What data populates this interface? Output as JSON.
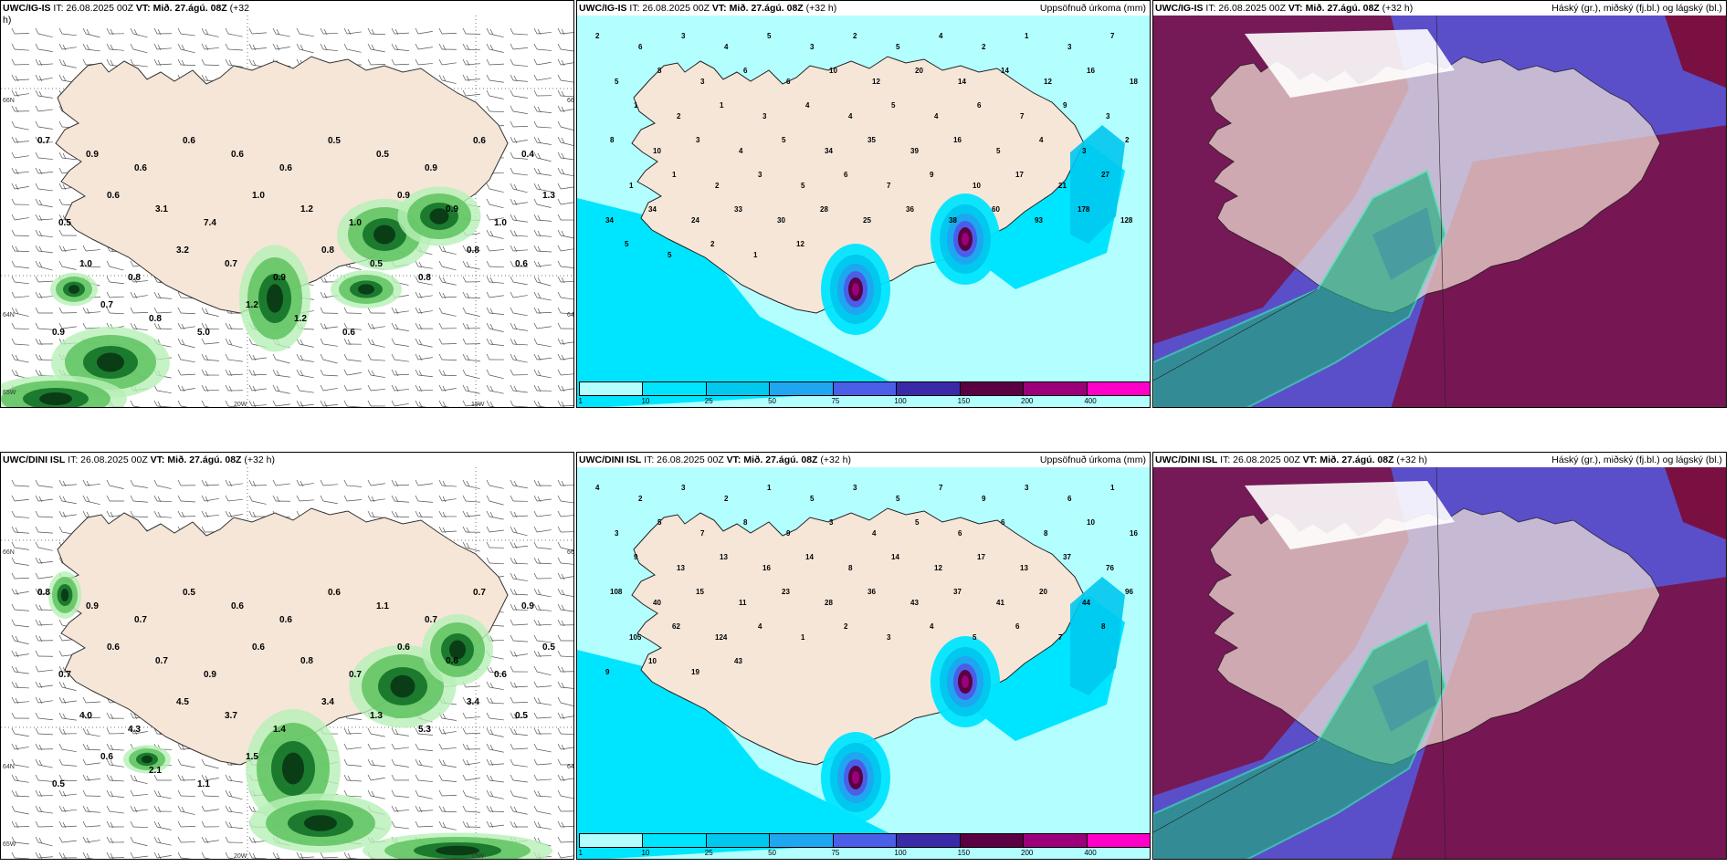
{
  "colors": {
    "land": "#f5e6d8",
    "sea": "#b3f5f5",
    "precip": [
      "#b3ffff",
      "#00e5ff",
      "#00c8ee",
      "#1ea6f0",
      "#4a5ee8",
      "#3a2aa8",
      "#5b0043",
      "#9b007a",
      "#ff00c8",
      "#f7b3f7"
    ],
    "cloud_high": "#1fae7a",
    "cloud_mid": "#5a4fc9",
    "cloud_low": "#7a1042",
    "wind_green": [
      "#e8fbe8",
      "#b6f0b6",
      "#5ec25e",
      "#1b7a2e",
      "#0a3d16"
    ]
  },
  "panels": [
    {
      "id": "p1",
      "model": "UWC/IG-IS",
      "it": "IT: 26.08.2025 00Z",
      "vt_label": "VT:",
      "vt": "Mið. 27.ágú. 08Z",
      "offset": "(+32",
      "offset2": "h)",
      "title_right": "",
      "type": "wind",
      "labels": [
        "0.7",
        "0.9",
        "0.6",
        "0.6",
        "0.6",
        "0.6",
        "0.5",
        "0.5",
        "0.9",
        "0.6",
        "0.4",
        "0.5",
        "0.6",
        "3.1",
        "7.4",
        "1.0",
        "1.2",
        "1.0",
        "0.9",
        "0.9",
        "1.0",
        "1.3",
        "1.0",
        "0.8",
        "3.2",
        "0.7",
        "0.9",
        "0.8",
        "0.5",
        "0.8",
        "0.8",
        "0.6",
        "0.9",
        "0.7",
        "0.8",
        "5.0",
        "1.2",
        "1.2",
        "0.6"
      ],
      "axis": [
        "66N",
        "64N",
        "65W",
        "20W",
        "15W",
        "66N",
        "64N"
      ]
    },
    {
      "id": "p2",
      "model": "UWC/IG-IS",
      "it": "IT: 26.08.2025 00Z",
      "vt_label": "VT:",
      "vt": "Mið. 27.ágú. 08Z",
      "offset": "(+32 h)",
      "title_right": "Uppsöfnuð úrkoma (mm)",
      "type": "precip",
      "labels": [
        "2",
        "6",
        "3",
        "4",
        "5",
        "3",
        "2",
        "5",
        "4",
        "2",
        "1",
        "3",
        "7",
        "5",
        "8",
        "3",
        "6",
        "6",
        "10",
        "12",
        "20",
        "14",
        "14",
        "12",
        "16",
        "18",
        "1",
        "2",
        "1",
        "3",
        "4",
        "4",
        "5",
        "4",
        "6",
        "7",
        "9",
        "3",
        "8",
        "10",
        "3",
        "4",
        "5",
        "34",
        "35",
        "39",
        "16",
        "5",
        "4",
        "3",
        "2",
        "1",
        "1",
        "2",
        "3",
        "5",
        "6",
        "7",
        "9",
        "10",
        "17",
        "21",
        "27",
        "34",
        "34",
        "24",
        "33",
        "30",
        "28",
        "25",
        "36",
        "38",
        "60",
        "93",
        "178",
        "128",
        "5",
        "5",
        "2",
        "1",
        "12"
      ],
      "cbar": [
        "1",
        "10",
        "25",
        "50",
        "75",
        "100",
        "150",
        "200",
        "400"
      ]
    },
    {
      "id": "p3",
      "model": "UWC/IG-IS",
      "it": "IT: 26.08.2025 00Z",
      "vt_label": "VT:",
      "vt": "Mið. 27.ágú. 08Z",
      "offset": "(+32 h)",
      "title_right": "Háský (gr.), miðský (fj.bl.) og lágský (bl.)",
      "type": "cloud"
    },
    {
      "id": "p4",
      "model": "UWC/DINI ISL",
      "it": "IT: 26.08.2025 00Z",
      "vt_label": "VT:",
      "vt": "Mið. 27.ágú. 08Z",
      "offset": "(+32 h)",
      "title_right": "",
      "type": "wind",
      "labels": [
        "0.8",
        "0.9",
        "0.7",
        "0.5",
        "0.6",
        "0.6",
        "0.6",
        "1.1",
        "0.7",
        "0.7",
        "0.9",
        "0.7",
        "0.6",
        "0.7",
        "0.9",
        "0.6",
        "0.8",
        "0.7",
        "0.6",
        "0.6",
        "0.6",
        "0.5",
        "4.0",
        "4.3",
        "4.5",
        "3.7",
        "1.4",
        "3.4",
        "1.3",
        "5.3",
        "3.4",
        "0.5",
        "0.5",
        "0.6",
        "2.1",
        "1.1",
        "1.5"
      ],
      "axis": [
        "66N",
        "64N",
        "65W",
        "20W",
        "15W",
        "66N",
        "64N"
      ]
    },
    {
      "id": "p5",
      "model": "UWC/DINI ISL",
      "it": "IT: 26.08.2025 00Z",
      "vt_label": "VT:",
      "vt": "Mið. 27.ágú. 08Z",
      "offset": "(+32 h)",
      "title_right": "Uppsöfnuð úrkoma (mm)",
      "type": "precip",
      "labels": [
        "4",
        "2",
        "3",
        "2",
        "1",
        "5",
        "3",
        "5",
        "7",
        "9",
        "3",
        "6",
        "1",
        "3",
        "5",
        "7",
        "8",
        "9",
        "3",
        "4",
        "5",
        "6",
        "6",
        "8",
        "10",
        "16",
        "9",
        "13",
        "13",
        "16",
        "14",
        "8",
        "14",
        "12",
        "17",
        "13",
        "37",
        "76",
        "108",
        "40",
        "15",
        "11",
        "23",
        "28",
        "36",
        "43",
        "37",
        "41",
        "20",
        "44",
        "96",
        "105",
        "62",
        "124",
        "4",
        "1",
        "2",
        "3",
        "4",
        "5",
        "6",
        "7",
        "8",
        "9",
        "10",
        "19",
        "43"
      ],
      "cbar": [
        "1",
        "10",
        "25",
        "50",
        "75",
        "100",
        "150",
        "200",
        "400"
      ]
    },
    {
      "id": "p6",
      "model": "UWC/DINI ISL",
      "it": "IT: 26.08.2025 00Z",
      "vt_label": "VT:",
      "vt": "Mið. 27.ágú. 08Z",
      "offset": "(+32 h)",
      "title_right": "Háský (gr.), miðský (fj.bl.) og lágský (bl.)",
      "type": "cloud"
    }
  ]
}
